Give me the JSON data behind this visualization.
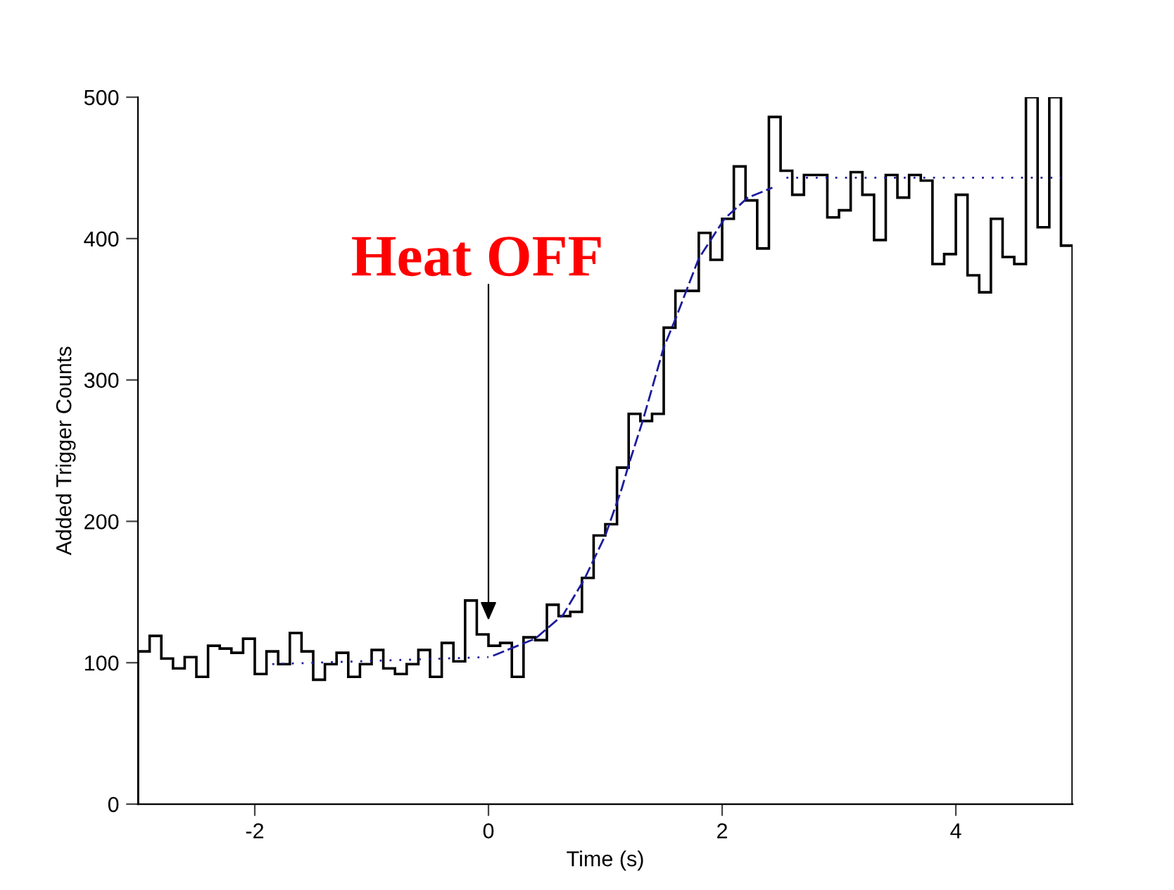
{
  "chart_data": {
    "type": "histogram",
    "xlabel": "Time (s)",
    "ylabel": "Added Trigger Counts",
    "xlim": [
      -3,
      5
    ],
    "ylim": [
      0,
      500
    ],
    "xticks": [
      -2,
      0,
      2,
      4
    ],
    "yticks": [
      0,
      100,
      200,
      300,
      400,
      500
    ],
    "grid": false,
    "legend": false,
    "annotations": [
      "Heat OFF"
    ],
    "series": [
      {
        "color": "#000000",
        "bins": [
          -3.0,
          -2.9,
          -2.8,
          -2.7,
          -2.6,
          -2.5,
          -2.4,
          -2.3,
          -2.2,
          -2.1,
          -2.0,
          -1.9,
          -1.8,
          -1.7,
          -1.6,
          -1.5,
          -1.4,
          -1.3,
          -1.2,
          -1.1,
          -1.0,
          -0.9,
          -0.8,
          -0.7,
          -0.6,
          -0.5,
          -0.4,
          -0.3,
          -0.2,
          -0.1,
          0.0,
          0.1,
          0.2,
          0.3,
          0.4,
          0.5,
          0.6,
          0.7,
          0.8,
          0.9,
          1.0,
          1.1,
          1.2,
          1.3,
          1.4,
          1.5,
          1.6,
          1.7,
          1.8,
          1.9,
          2.0,
          2.1,
          2.2,
          2.3,
          2.4,
          2.5,
          2.6,
          2.7,
          2.8,
          2.9,
          3.0,
          3.1,
          3.2,
          3.3,
          3.4,
          3.5,
          3.6,
          3.7,
          3.8,
          3.9,
          4.0,
          4.1,
          4.2,
          4.3,
          4.4,
          4.5,
          4.6,
          4.7,
          4.8,
          4.9,
          5.0
        ],
        "values": [
          108,
          119,
          103,
          96,
          104,
          90,
          112,
          110,
          107,
          117,
          92,
          108,
          99,
          121,
          108,
          88,
          99,
          107,
          90,
          99,
          109,
          96,
          92,
          99,
          109,
          90,
          114,
          101,
          144,
          120,
          112,
          114,
          90,
          118,
          116,
          141,
          133,
          136,
          160,
          190,
          198,
          238,
          276,
          271,
          276,
          337,
          363,
          363,
          404,
          385,
          414,
          451,
          427,
          393,
          486,
          448,
          431,
          445,
          445,
          415,
          420,
          447,
          431,
          399,
          445,
          429,
          445,
          441,
          382,
          389,
          431,
          374,
          362,
          414,
          387,
          382,
          500,
          408,
          500,
          395
        ]
      },
      {
        "type": "line",
        "color": "#1c1c9c",
        "line_style": "dashed",
        "x": [
          0.04,
          0.4,
          0.64,
          0.82,
          1.0,
          1.14,
          1.2,
          1.32,
          1.5,
          1.6,
          1.8,
          2.02,
          2.22,
          2.43
        ],
        "values": [
          105,
          117,
          134,
          159,
          190,
          223,
          240,
          271,
          323,
          343,
          386,
          414,
          429,
          436
        ]
      },
      {
        "type": "line",
        "color": "#1c1c9c",
        "line_style": "dotted",
        "x": [
          -1.85,
          0.0
        ],
        "values": [
          99,
          104
        ]
      },
      {
        "type": "line",
        "color": "#1c1c9c",
        "line_style": "dotted",
        "x": [
          2.55,
          4.9
        ],
        "values": [
          443,
          443
        ]
      }
    ]
  }
}
